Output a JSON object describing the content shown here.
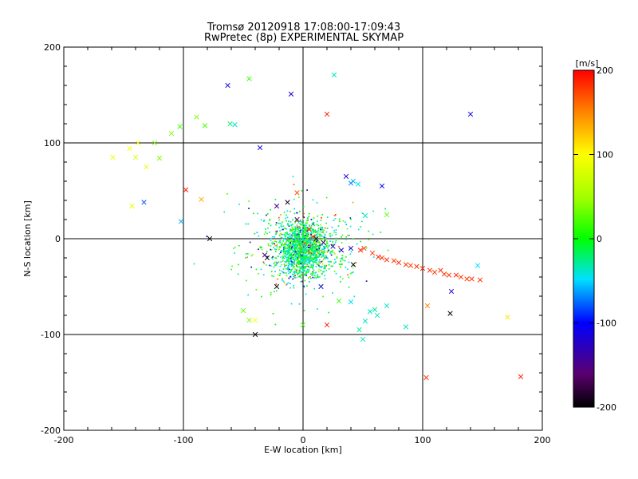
{
  "chart_data": {
    "type": "scatter",
    "title": "Tromsø 20120918 17:08:00-17:09:43",
    "subtitle": "RwPretec (8p) EXPERIMENTAL SKYMAP",
    "xlabel": "E-W location [km]",
    "ylabel": "N-S location [km]",
    "xlim": [
      -200,
      200
    ],
    "ylim": [
      -200,
      200
    ],
    "xticks": [
      "-200",
      "-100",
      "0",
      "100",
      "200"
    ],
    "yticks": [
      "-200",
      "-100",
      "0",
      "100",
      "200"
    ],
    "grid": true,
    "colorbar": {
      "label": "[m/s]",
      "range": [
        -200,
        200
      ],
      "ticks": [
        "200",
        "100",
        "0",
        "-100",
        "-200"
      ],
      "colormap": "rainbow (black-purple-blue-cyan-green-yellow-red)",
      "placement": "right"
    },
    "dense_cluster_center_km": [
      0,
      -10
    ],
    "cross_markers": [
      {
        "x": -63,
        "y": 160,
        "v": -110
      },
      {
        "x": -45,
        "y": 167,
        "v": 20
      },
      {
        "x": -10,
        "y": 151,
        "v": -120
      },
      {
        "x": 26,
        "y": 171,
        "v": -40
      },
      {
        "x": 20,
        "y": 130,
        "v": 190
      },
      {
        "x": 140,
        "y": 130,
        "v": -110
      },
      {
        "x": -57,
        "y": 119,
        "v": -40
      },
      {
        "x": -82,
        "y": 118,
        "v": 20
      },
      {
        "x": -89,
        "y": 127,
        "v": 40
      },
      {
        "x": -103,
        "y": 117,
        "v": 20
      },
      {
        "x": -110,
        "y": 110,
        "v": 40
      },
      {
        "x": -124,
        "y": 100,
        "v": 40
      },
      {
        "x": -138,
        "y": 100,
        "v": 100
      },
      {
        "x": -145,
        "y": 94,
        "v": 100
      },
      {
        "x": -159,
        "y": 85,
        "v": 90
      },
      {
        "x": -140,
        "y": 85,
        "v": 80
      },
      {
        "x": -120,
        "y": 84,
        "v": 40
      },
      {
        "x": -131,
        "y": 75,
        "v": 90
      },
      {
        "x": -143,
        "y": 34,
        "v": 90
      },
      {
        "x": -133,
        "y": 38,
        "v": -80
      },
      {
        "x": -102,
        "y": 18,
        "v": -60
      },
      {
        "x": -98,
        "y": 51,
        "v": 190
      },
      {
        "x": -85,
        "y": 41,
        "v": 130
      },
      {
        "x": -78,
        "y": 0,
        "v": -200
      },
      {
        "x": -61,
        "y": 120,
        "v": -20
      },
      {
        "x": -36,
        "y": 95,
        "v": -110
      },
      {
        "x": 36,
        "y": 65,
        "v": -110
      },
      {
        "x": 42,
        "y": 60,
        "v": -60
      },
      {
        "x": 40,
        "y": 58,
        "v": -70
      },
      {
        "x": 46,
        "y": 57,
        "v": -50
      },
      {
        "x": 66,
        "y": 55,
        "v": -100
      },
      {
        "x": 70,
        "y": 25,
        "v": 30
      },
      {
        "x": 52,
        "y": 24,
        "v": -40
      },
      {
        "x": -5,
        "y": 48,
        "v": 170
      },
      {
        "x": -22,
        "y": 34,
        "v": -150
      },
      {
        "x": -13,
        "y": 38,
        "v": -190
      },
      {
        "x": -5,
        "y": 20,
        "v": -160
      },
      {
        "x": 5,
        "y": 10,
        "v": 190
      },
      {
        "x": 8,
        "y": 2,
        "v": 180
      },
      {
        "x": 11,
        "y": 0,
        "v": -190
      },
      {
        "x": 17,
        "y": -4,
        "v": -150
      },
      {
        "x": 25,
        "y": -8,
        "v": -130
      },
      {
        "x": 32,
        "y": -12,
        "v": -120
      },
      {
        "x": 40,
        "y": -10,
        "v": -130
      },
      {
        "x": 42,
        "y": -27,
        "v": -200
      },
      {
        "x": 48,
        "y": -12,
        "v": 190
      },
      {
        "x": 51,
        "y": -10,
        "v": 180
      },
      {
        "x": 58,
        "y": -15,
        "v": 175
      },
      {
        "x": 63,
        "y": -19,
        "v": 185
      },
      {
        "x": 66,
        "y": -20,
        "v": 180
      },
      {
        "x": 70,
        "y": -22,
        "v": 180
      },
      {
        "x": 76,
        "y": -23,
        "v": 180
      },
      {
        "x": 80,
        "y": -25,
        "v": 185
      },
      {
        "x": 86,
        "y": -27,
        "v": 180
      },
      {
        "x": 90,
        "y": -28,
        "v": 175
      },
      {
        "x": 95,
        "y": -29,
        "v": 180
      },
      {
        "x": 100,
        "y": -31,
        "v": 185
      },
      {
        "x": 106,
        "y": -33,
        "v": 180
      },
      {
        "x": 110,
        "y": -35,
        "v": 180
      },
      {
        "x": 115,
        "y": -33,
        "v": 185
      },
      {
        "x": 118,
        "y": -37,
        "v": 180
      },
      {
        "x": 122,
        "y": -38,
        "v": 180
      },
      {
        "x": 128,
        "y": -38,
        "v": 185
      },
      {
        "x": 132,
        "y": -40,
        "v": 180
      },
      {
        "x": 137,
        "y": -42,
        "v": 180
      },
      {
        "x": 141,
        "y": -42,
        "v": 180
      },
      {
        "x": 148,
        "y": -43,
        "v": 180
      },
      {
        "x": 146,
        "y": -28,
        "v": -50
      },
      {
        "x": 124,
        "y": -55,
        "v": -120
      },
      {
        "x": 123,
        "y": -78,
        "v": -200
      },
      {
        "x": 104,
        "y": -70,
        "v": 150
      },
      {
        "x": 103,
        "y": -145,
        "v": 185
      },
      {
        "x": 182,
        "y": -144,
        "v": 185
      },
      {
        "x": 171,
        "y": -82,
        "v": 110
      },
      {
        "x": 86,
        "y": -92,
        "v": -40
      },
      {
        "x": 62,
        "y": -80,
        "v": -40
      },
      {
        "x": 70,
        "y": -70,
        "v": -40
      },
      {
        "x": 60,
        "y": -74,
        "v": -30
      },
      {
        "x": 56,
        "y": -76,
        "v": -40
      },
      {
        "x": 52,
        "y": -86,
        "v": -40
      },
      {
        "x": 47,
        "y": -95,
        "v": -30
      },
      {
        "x": 50,
        "y": -105,
        "v": -40
      },
      {
        "x": 40,
        "y": -66,
        "v": -50
      },
      {
        "x": 20,
        "y": -90,
        "v": 190
      },
      {
        "x": 0,
        "y": -90,
        "v": 20
      },
      {
        "x": -40,
        "y": -100,
        "v": -200
      },
      {
        "x": -45,
        "y": -85,
        "v": 40
      },
      {
        "x": -40,
        "y": -85,
        "v": 100
      },
      {
        "x": -50,
        "y": -75,
        "v": 30
      },
      {
        "x": -22,
        "y": -50,
        "v": -200
      },
      {
        "x": -30,
        "y": -20,
        "v": -200
      },
      {
        "x": -32,
        "y": -17,
        "v": -160
      },
      {
        "x": 15,
        "y": -50,
        "v": -110
      },
      {
        "x": 30,
        "y": -65,
        "v": 20
      }
    ]
  }
}
